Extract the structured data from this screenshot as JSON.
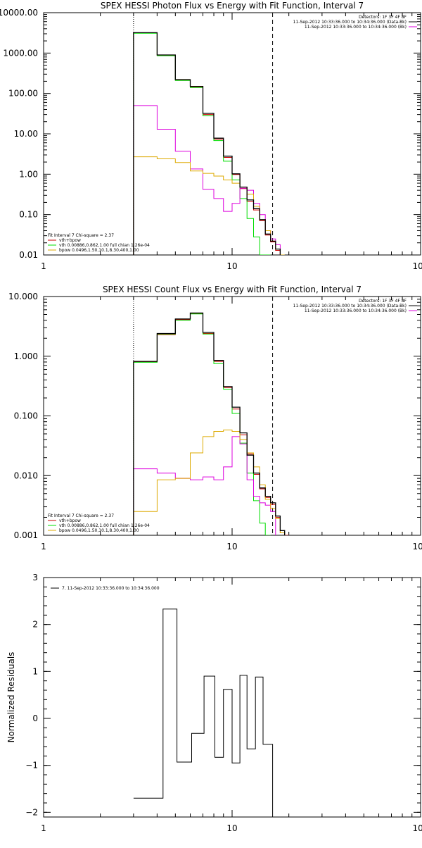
{
  "chart_data": [
    {
      "type": "line",
      "title": "SPEX HESSI Photon Flux vs Energy with Fit Function, Interval 7",
      "xscale": "log",
      "yscale": "log",
      "xlim": [
        1,
        100
      ],
      "ylim": [
        0.01,
        10000
      ],
      "xticks": [
        1,
        10,
        100
      ],
      "xtick_labels": [
        "1",
        "10",
        "100"
      ],
      "yticks": [
        0.01,
        0.1,
        1,
        10,
        100,
        1000,
        10000
      ],
      "ytick_labels": [
        "0.01",
        "0.10",
        "1.00",
        "10.00",
        "100.00",
        "1000.00",
        "10000.00"
      ],
      "vlines": [
        {
          "x": 3,
          "style": "dotted"
        },
        {
          "x": 16.4,
          "style": "dashed"
        }
      ],
      "legend_top": [
        "Detectors: 1F 3F 4F 8F",
        "11-Sep-2012 10:33:36.000 to 10:34:36.000 (Data-Bk)",
        "11-Sep-2012 10:33:36.000 to 10:34:36.000 (Bk)"
      ],
      "legend_bottom": [
        "Fit Interval 7   Chi-square = 2.37",
        "vth+bpow",
        "vth 0.00886,0.862,1.00  full chian 1.26e-04",
        "bpow 0.0496,1.50,10.1,8.30,400,1.00"
      ],
      "edges": [
        3,
        4,
        5,
        6,
        7,
        8,
        9,
        10,
        11,
        12,
        13,
        14,
        15,
        16,
        17,
        18,
        19
      ],
      "series": [
        {
          "color": "#000000",
          "width": 1.3,
          "values": [
            3200,
            900,
            220,
            150,
            32,
            7.8,
            2.8,
            1.02,
            0.48,
            0.23,
            0.14,
            0.075,
            0.033,
            0.022,
            0.014,
            null
          ]
        },
        {
          "color": "#cc0000",
          "width": 1.0,
          "values": [
            3150,
            880,
            215,
            145,
            30,
            7.4,
            2.6,
            0.98,
            0.44,
            0.21,
            0.13,
            0.07,
            0.031,
            0.021,
            0.013,
            null
          ]
        },
        {
          "color": "#00dd00",
          "width": 1.0,
          "values": [
            3100,
            860,
            210,
            140,
            28,
            6.8,
            2.1,
            0.72,
            0.25,
            0.08,
            0.028,
            0.009,
            0.003,
            null,
            null,
            null
          ]
        },
        {
          "color": "#dd00dd",
          "width": 1.0,
          "values": [
            50,
            13,
            3.7,
            1.35,
            0.42,
            0.25,
            0.12,
            0.19,
            0.45,
            0.4,
            0.19,
            0.1,
            0.04,
            0.025,
            0.018,
            null
          ]
        },
        {
          "color": "#ddaa00",
          "width": 1.0,
          "values": [
            2.7,
            2.4,
            1.95,
            1.2,
            1.05,
            0.9,
            0.72,
            0.6,
            0.48,
            0.32,
            0.16,
            0.075,
            0.04,
            0.022,
            0.014,
            0.01
          ]
        }
      ]
    },
    {
      "type": "line",
      "title": "SPEX HESSI Count Flux vs Energy with Fit Function, Interval 7",
      "xscale": "log",
      "yscale": "log",
      "xlim": [
        1,
        100
      ],
      "ylim": [
        0.001,
        10
      ],
      "xticks": [
        1,
        10,
        100
      ],
      "xtick_labels": [
        "1",
        "10",
        "100"
      ],
      "yticks": [
        0.001,
        0.01,
        0.1,
        1,
        10
      ],
      "ytick_labels": [
        "0.001",
        "0.010",
        "0.100",
        "1.000",
        "10.000"
      ],
      "vlines": [
        {
          "x": 3,
          "style": "dotted"
        },
        {
          "x": 16.4,
          "style": "dashed"
        }
      ],
      "legend_top": [
        "Detectors: 1F 3F 4F 8F",
        "11-Sep-2012 10:33:36.000 to 10:34:36.000 (Data-Bk)",
        "11-Sep-2012 10:33:36.000 to 10:34:36.000 (Bk)"
      ],
      "legend_bottom": [
        "Fit Interval 7   Chi-square = 2.37",
        "vth+bpow",
        "vth 0.00886,0.862,1.00  full chian 1.26e-04",
        "bpow 0.0496,1.50,10.1,8.30,400,1.00"
      ],
      "edges": [
        3,
        4,
        5,
        6,
        7,
        8,
        9,
        10,
        11,
        12,
        13,
        14,
        15,
        16,
        17,
        18,
        19,
        20
      ],
      "series": [
        {
          "color": "#000000",
          "width": 1.3,
          "values": [
            0.82,
            2.4,
            4.2,
            5.3,
            2.5,
            0.85,
            0.31,
            0.14,
            0.052,
            0.022,
            0.011,
            0.0062,
            0.0045,
            0.0035,
            0.0021,
            0.0012,
            null
          ]
        },
        {
          "color": "#cc0000",
          "width": 1.0,
          "values": [
            0.8,
            2.3,
            4.1,
            5.2,
            2.4,
            0.82,
            0.3,
            0.13,
            0.048,
            0.023,
            0.0105,
            0.006,
            0.0043,
            0.0033,
            0.002,
            0.0011,
            0.001
          ]
        },
        {
          "color": "#00dd00",
          "width": 1.0,
          "values": [
            0.79,
            2.35,
            4.0,
            5.1,
            2.35,
            0.75,
            0.28,
            0.11,
            0.035,
            0.011,
            0.0038,
            0.0016,
            0.001,
            null,
            null,
            null,
            null
          ]
        },
        {
          "color": "#dd00dd",
          "width": 1.0,
          "values": [
            0.013,
            0.011,
            0.009,
            0.0085,
            0.0095,
            0.0085,
            0.014,
            0.045,
            0.034,
            0.0085,
            0.0045,
            0.0035,
            0.0032,
            0.0025,
            null,
            null,
            null
          ]
        },
        {
          "color": "#ddaa00",
          "width": 1.0,
          "values": [
            0.0025,
            0.0085,
            0.009,
            0.024,
            0.045,
            0.055,
            0.058,
            0.055,
            0.04,
            0.024,
            0.014,
            0.007,
            0.004,
            0.0028,
            0.0019,
            0.0011,
            null
          ]
        }
      ]
    },
    {
      "type": "line",
      "title": "",
      "xscale": "log",
      "yscale": "linear",
      "xlim": [
        1,
        100
      ],
      "ylim": [
        -2.1,
        3
      ],
      "ylabel": "Normalized Residuals",
      "xticks": [
        1,
        10,
        100
      ],
      "xtick_labels": [
        "1",
        "10",
        "100"
      ],
      "yticks": [
        -2,
        -1,
        0,
        1,
        2,
        3
      ],
      "ytick_labels": [
        "−2",
        "−1",
        "0",
        "1",
        "2",
        "3"
      ],
      "legend_top": [
        "7. 11-Sep-2012 10:33:36.000 to 10:34:36.000"
      ],
      "edges": [
        3,
        4.3,
        5.1,
        6.1,
        7.1,
        8.1,
        9,
        10,
        11,
        12,
        13.3,
        14.6,
        16.4
      ],
      "series": [
        {
          "color": "#000000",
          "width": 1.0,
          "values": [
            -1.7,
            2.33,
            -0.93,
            -0.32,
            0.9,
            -0.83,
            0.62,
            -0.95,
            0.92,
            -0.65,
            0.88,
            -0.55
          ]
        }
      ]
    }
  ]
}
